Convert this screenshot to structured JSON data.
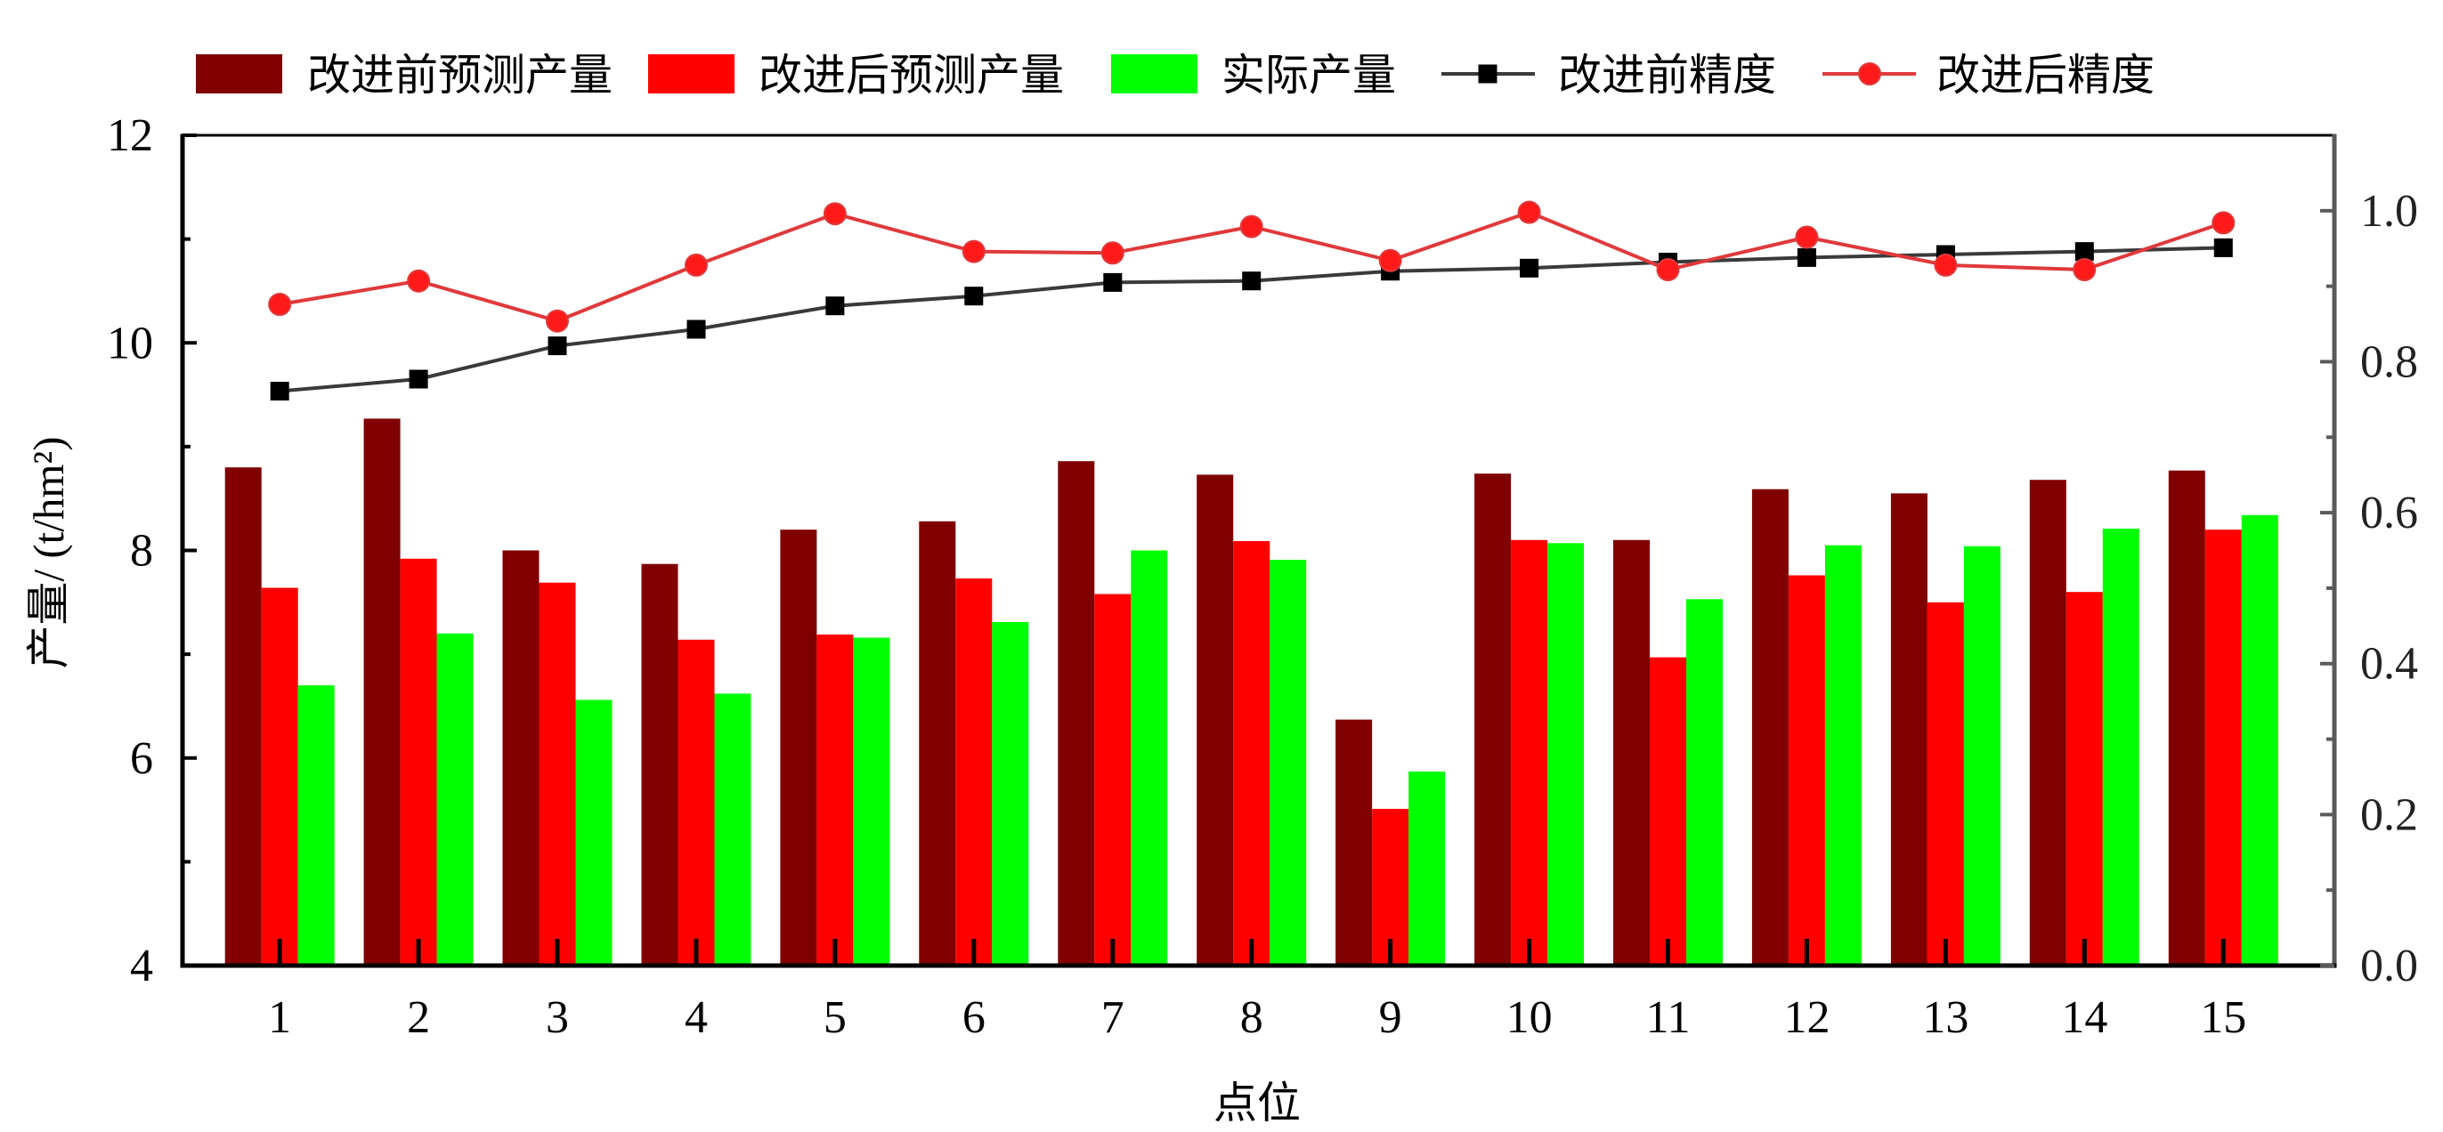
{
  "chart_data": {
    "type": "bar",
    "categories": [
      "1",
      "2",
      "3",
      "4",
      "5",
      "6",
      "7",
      "8",
      "9",
      "10",
      "11",
      "12",
      "13",
      "14",
      "15"
    ],
    "xlabel": "点位",
    "ylabel": "产量/ (t/hm²)",
    "ylim": [
      4,
      12
    ],
    "y_ticks": [
      "4",
      "6",
      "8",
      "10",
      "12"
    ],
    "y2lim": [
      0,
      1.1
    ],
    "y2_ticks": [
      "0.0",
      "0.2",
      "0.4",
      "0.6",
      "0.8",
      "1.0"
    ],
    "legend": "top",
    "grid": false,
    "series": [
      {
        "name": "改进前预测产量",
        "type": "bar",
        "axis": "left",
        "color": "#800000",
        "values": [
          8.8,
          9.27,
          8.0,
          7.87,
          8.2,
          8.28,
          8.86,
          8.73,
          6.37,
          8.74,
          8.1,
          8.59,
          8.55,
          8.68,
          8.77
        ]
      },
      {
        "name": "改进后预测产量",
        "type": "bar",
        "axis": "left",
        "color": "#ff0000",
        "values": [
          7.64,
          7.92,
          7.69,
          7.14,
          7.19,
          7.73,
          7.58,
          8.09,
          5.51,
          8.1,
          6.97,
          7.76,
          7.5,
          7.6,
          8.2
        ]
      },
      {
        "name": "实际产量",
        "type": "bar",
        "axis": "left",
        "color": "#00ff00",
        "values": [
          6.7,
          7.2,
          6.56,
          6.62,
          7.16,
          7.31,
          8.0,
          7.91,
          5.87,
          8.07,
          7.53,
          8.05,
          8.04,
          8.21,
          8.34
        ]
      },
      {
        "name": "改进前精度",
        "type": "line",
        "axis": "right",
        "marker": "square",
        "color": "#000000",
        "line_color": "#3a3a3a",
        "values": [
          0.761,
          0.777,
          0.821,
          0.843,
          0.874,
          0.887,
          0.905,
          0.907,
          0.92,
          0.924,
          0.932,
          0.938,
          0.942,
          0.946,
          0.951
        ]
      },
      {
        "name": "改进后精度",
        "type": "line",
        "axis": "right",
        "marker": "circle",
        "color": "#ff1a1a",
        "line_color": "#e0393b",
        "values": [
          0.876,
          0.907,
          0.854,
          0.928,
          0.996,
          0.946,
          0.944,
          0.979,
          0.934,
          0.998,
          0.922,
          0.965,
          0.928,
          0.922,
          0.984
        ]
      }
    ]
  }
}
